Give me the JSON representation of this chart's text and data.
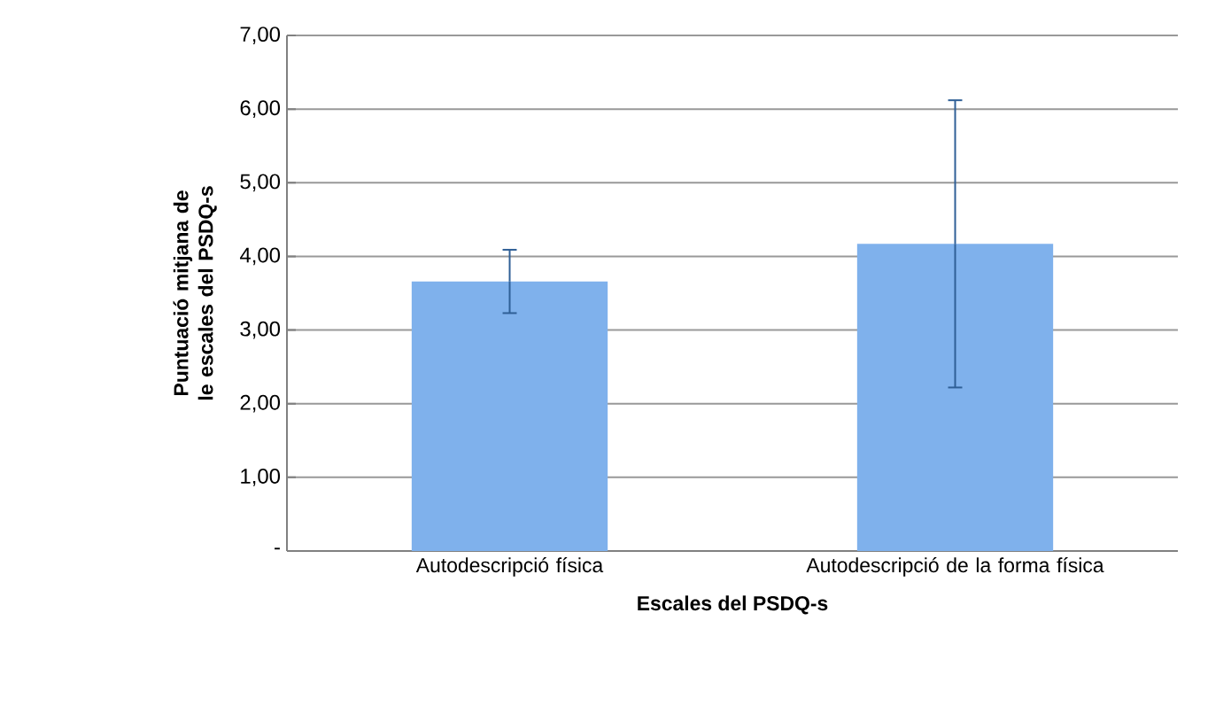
{
  "chart_data": {
    "type": "bar",
    "xlabel": "Escales del PSDQ-s",
    "ylabel": "Puntuació mitjana de le escales del PSDQ-s",
    "categories": [
      "Autodescripció física",
      "Autodescripció de la forma física"
    ],
    "values": [
      3.66,
      4.17
    ],
    "errors": [
      0.43,
      1.95
    ],
    "color": "#7fb1ec",
    "ylim": [
      0,
      7
    ],
    "yticks": [
      {
        "value": 0,
        "label": "-"
      },
      {
        "value": 1,
        "label": "1,00"
      },
      {
        "value": 2,
        "label": "2,00"
      },
      {
        "value": 3,
        "label": "3,00"
      },
      {
        "value": 4,
        "label": "4,00"
      },
      {
        "value": 5,
        "label": "5,00"
      },
      {
        "value": 6,
        "label": "6,00"
      },
      {
        "value": 7,
        "label": "7,00"
      }
    ],
    "grid": "y"
  }
}
